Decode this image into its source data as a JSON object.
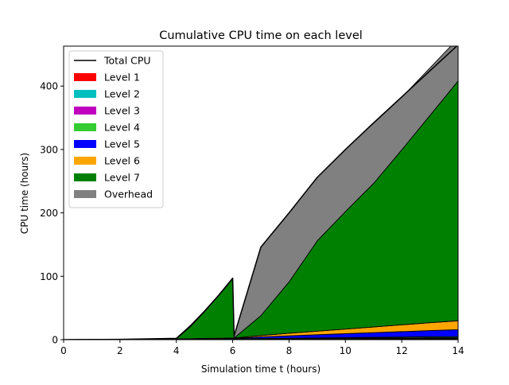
{
  "chart_data": {
    "type": "area",
    "title": "Cumulative CPU time on each level",
    "xlabel": "Simulation time t (hours)",
    "ylabel": "CPU time (hours)",
    "xlim": [
      0,
      14
    ],
    "ylim": [
      0,
      463
    ],
    "xticks": [
      0,
      2,
      4,
      6,
      8,
      10,
      12,
      14
    ],
    "yticks": [
      0,
      100,
      200,
      300,
      400
    ],
    "grid": false,
    "legend_position": "top-left",
    "x": [
      0,
      2,
      4,
      4.5,
      5,
      5.5,
      6,
      6.05,
      7,
      8,
      9,
      10,
      11,
      12,
      13,
      14
    ],
    "total_cpu": {
      "name": "Total CPU",
      "color": "#000000",
      "values": [
        0,
        0.5,
        2,
        22,
        45,
        70,
        97,
        6,
        146,
        200,
        256,
        300,
        342,
        383,
        424,
        465
      ]
    },
    "series": [
      {
        "name": "Level 1",
        "color": "#ff0000",
        "values": [
          0,
          0.1,
          0.2,
          0.2,
          0.3,
          0.3,
          0.3,
          0.3,
          0.4,
          0.5,
          0.6,
          0.7,
          0.8,
          0.9,
          1.0,
          1.0
        ]
      },
      {
        "name": "Level 2",
        "color": "#00bfbf",
        "values": [
          0,
          0.1,
          0.2,
          0.2,
          0.3,
          0.3,
          0.3,
          0.3,
          0.4,
          0.5,
          0.6,
          0.7,
          0.8,
          0.9,
          1.0,
          1.0
        ]
      },
      {
        "name": "Level 3",
        "color": "#bf00bf",
        "values": [
          0,
          0.1,
          0.2,
          0.2,
          0.3,
          0.3,
          0.3,
          0.3,
          0.4,
          0.5,
          0.6,
          0.7,
          0.8,
          0.9,
          1.0,
          1.0
        ]
      },
      {
        "name": "Level 4",
        "color": "#33cc33",
        "values": [
          0,
          0.1,
          0.2,
          0.2,
          0.3,
          0.3,
          0.4,
          0.4,
          0.6,
          0.8,
          1.0,
          1.1,
          1.2,
          1.4,
          1.6,
          1.8
        ]
      },
      {
        "name": "Level 5",
        "color": "#0000ff",
        "values": [
          0,
          0.1,
          0.3,
          0.4,
          0.5,
          0.6,
          0.7,
          0.7,
          2.5,
          3.8,
          5.0,
          6.2,
          7.4,
          8.6,
          9.8,
          11.0
        ]
      },
      {
        "name": "Level 6",
        "color": "#ffa500",
        "values": [
          0,
          0,
          0.2,
          0.3,
          0.4,
          0.5,
          0.6,
          0.6,
          2.3,
          4.0,
          5.6,
          7.3,
          9.0,
          10.7,
          12.4,
          14.0
        ]
      },
      {
        "name": "Level 7",
        "color": "#008000",
        "values": [
          0,
          0,
          0,
          19,
          42,
          67,
          93.4,
          0,
          31.2,
          80.9,
          142.4,
          185.3,
          226.4,
          275.9,
          326.8,
          378.2
        ]
      },
      {
        "name": "Overhead",
        "color": "#808080",
        "values": [
          0,
          0,
          0.5,
          0.5,
          0.6,
          0.7,
          1,
          3,
          108,
          109,
          100,
          98,
          95,
          83,
          75,
          67
        ]
      }
    ]
  }
}
